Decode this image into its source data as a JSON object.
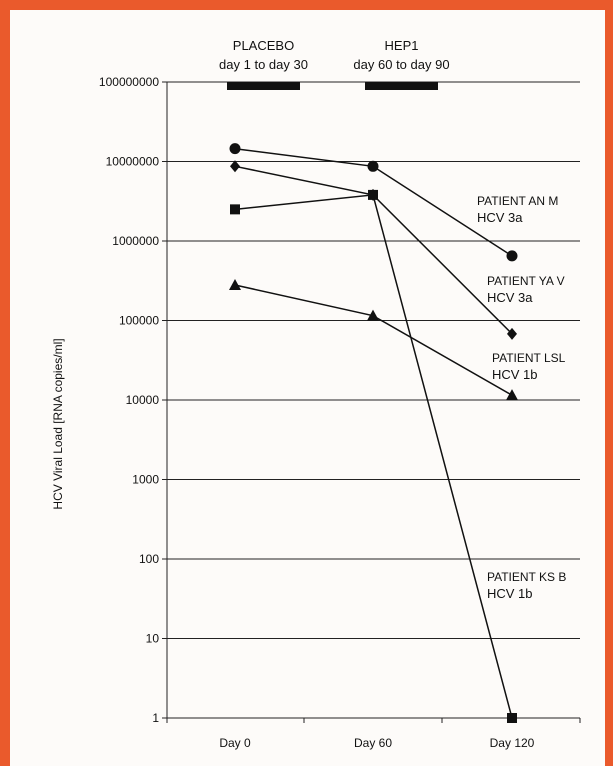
{
  "chart_data": {
    "type": "line",
    "ylabel": "HCV Viral Load [RNA copies/ml]",
    "yscale": "log",
    "ylim": [
      1,
      100000000
    ],
    "yticks": [
      "100000000",
      "10000000",
      "1000000",
      "100000",
      "10000",
      "1000",
      "100",
      "10",
      "1"
    ],
    "categories": [
      "Day 0",
      "Day 60",
      "Day 120"
    ],
    "grid": true,
    "treatments": [
      {
        "name": "PLACEBO",
        "period": "day 1 to day 30",
        "range": [
          0,
          30
        ]
      },
      {
        "name": "HEP1",
        "period": "day 60 to day 90",
        "range": [
          60,
          90
        ]
      }
    ],
    "series": [
      {
        "name": "PATIENT AN M",
        "genotype": "HCV 3a",
        "marker": "circle",
        "values": [
          14500000,
          8700000,
          650000
        ]
      },
      {
        "name": "PATIENT YA V",
        "genotype": "HCV 3a",
        "marker": "diamond",
        "values": [
          8700000,
          3800000,
          68000
        ]
      },
      {
        "name": "PATIENT KS B",
        "genotype": "HCV 1b",
        "marker": "square",
        "values": [
          2500000,
          3800000,
          1
        ]
      },
      {
        "name": "PATIENT LSL",
        "genotype": "HCV 1b",
        "marker": "triangle",
        "values": [
          280000,
          115000,
          11500
        ]
      }
    ]
  }
}
